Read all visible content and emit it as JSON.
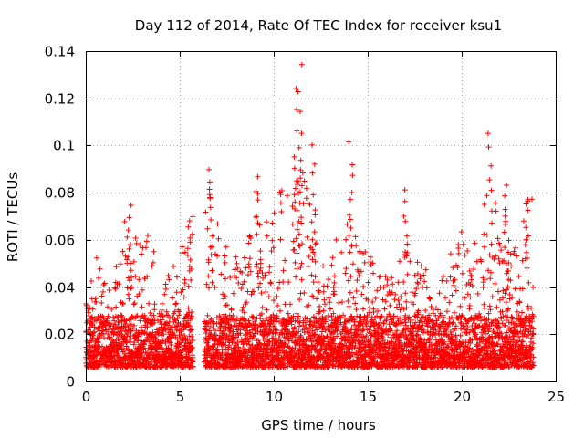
{
  "chart_data": {
    "type": "scatter",
    "title": "Day 112 of 2014, Rate Of TEC Index for receiver ksu1",
    "xlabel": "GPS time / hours",
    "ylabel": "ROTI / TECUs",
    "xlim": [
      0,
      25
    ],
    "ylim": [
      0,
      0.14
    ],
    "xticks": [
      0,
      5,
      10,
      15,
      20,
      25
    ],
    "xtick_labels": [
      "0",
      "5",
      "10",
      "15",
      "20",
      "25"
    ],
    "yticks": [
      0,
      0.02,
      0.04,
      0.06,
      0.08,
      0.1,
      0.12,
      0.14
    ],
    "ytick_labels": [
      "0",
      "0.02",
      "0.04",
      "0.06",
      "0.08",
      "0.1",
      "0.12",
      "0.14"
    ],
    "grid": true,
    "marker": "+",
    "color": "#ff0000",
    "coverage_segments": [
      [
        0,
        5.7
      ],
      [
        6.3,
        23.8
      ]
    ],
    "envelope": [
      [
        0,
        0.045
      ],
      [
        0.5,
        0.055
      ],
      [
        1.0,
        0.045
      ],
      [
        1.5,
        0.05
      ],
      [
        2.0,
        0.07
      ],
      [
        2.5,
        0.065
      ],
      [
        3.0,
        0.058
      ],
      [
        3.5,
        0.065
      ],
      [
        4.0,
        0.05
      ],
      [
        4.5,
        0.045
      ],
      [
        5.0,
        0.058
      ],
      [
        5.5,
        0.068
      ],
      [
        6.5,
        0.085
      ],
      [
        7.0,
        0.08
      ],
      [
        7.5,
        0.06
      ],
      [
        8.0,
        0.07
      ],
      [
        8.5,
        0.06
      ],
      [
        9.0,
        0.085
      ],
      [
        9.5,
        0.075
      ],
      [
        10.0,
        0.075
      ],
      [
        10.5,
        0.085
      ],
      [
        11.0,
        0.1
      ],
      [
        11.5,
        0.09
      ],
      [
        12.0,
        0.08
      ],
      [
        12.5,
        0.058
      ],
      [
        13.0,
        0.055
      ],
      [
        13.5,
        0.065
      ],
      [
        14.0,
        0.075
      ],
      [
        14.5,
        0.06
      ],
      [
        15.0,
        0.06
      ],
      [
        15.5,
        0.045
      ],
      [
        16.0,
        0.045
      ],
      [
        16.5,
        0.045
      ],
      [
        17.0,
        0.062
      ],
      [
        17.5,
        0.055
      ],
      [
        18.0,
        0.05
      ],
      [
        18.5,
        0.04
      ],
      [
        19.0,
        0.045
      ],
      [
        19.5,
        0.06
      ],
      [
        20.0,
        0.07
      ],
      [
        20.5,
        0.06
      ],
      [
        21.0,
        0.072
      ],
      [
        21.5,
        0.085
      ],
      [
        22.0,
        0.075
      ],
      [
        22.5,
        0.065
      ],
      [
        23.0,
        0.058
      ],
      [
        23.5,
        0.078
      ]
    ],
    "peaks": [
      {
        "x": 2.3,
        "y": 0.075
      },
      {
        "x": 5.5,
        "y": 0.07
      },
      {
        "x": 6.6,
        "y": 0.09
      },
      {
        "x": 9.2,
        "y": 0.088
      },
      {
        "x": 11.1,
        "y": 0.097
      },
      {
        "x": 11.3,
        "y": 0.125
      },
      {
        "x": 11.4,
        "y": 0.135
      },
      {
        "x": 12.1,
        "y": 0.101
      },
      {
        "x": 14.1,
        "y": 0.102
      },
      {
        "x": 17.0,
        "y": 0.082
      },
      {
        "x": 21.5,
        "y": 0.109
      },
      {
        "x": 22.4,
        "y": 0.086
      },
      {
        "x": 23.5,
        "y": 0.081
      }
    ]
  }
}
